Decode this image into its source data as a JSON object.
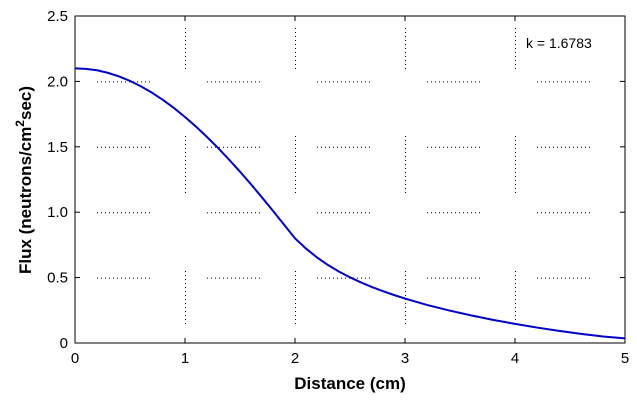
{
  "chart_data": {
    "type": "line",
    "title": "",
    "xlabel": "Distance (cm)",
    "ylabel_main": "Flux (neutrons/cm",
    "ylabel_sup": "2",
    "ylabel_tail": "sec)",
    "annotation": "k = 1.6783",
    "xlim": [
      0,
      5
    ],
    "ylim": [
      0,
      2.5
    ],
    "xticks": [
      0,
      1,
      2,
      3,
      4,
      5
    ],
    "yticks": [
      0,
      0.5,
      1,
      1.5,
      2,
      2.5
    ],
    "xtick_labels": [
      "0",
      "1",
      "2",
      "3",
      "4",
      "5"
    ],
    "ytick_labels": [
      "0",
      "0.5",
      "1.0",
      "1.5",
      "2.0",
      "2.5"
    ],
    "grid": "dotted",
    "line_color": "#0000cc",
    "series": [
      {
        "x": [
          0,
          0.1,
          0.2,
          0.3,
          0.4,
          0.5,
          0.6,
          0.7,
          0.8,
          0.9,
          1.0,
          1.1,
          1.2,
          1.3,
          1.4,
          1.5,
          1.6,
          1.7,
          1.8,
          1.9,
          2.0,
          2.1,
          2.2,
          2.3,
          2.4,
          2.5,
          2.6,
          2.7,
          2.8,
          2.9,
          3.0,
          3.2,
          3.4,
          3.6,
          3.8,
          4.0,
          4.2,
          4.4,
          4.6,
          4.8,
          5.0
        ],
        "y": [
          2.1,
          2.096,
          2.085,
          2.065,
          2.038,
          2.004,
          1.962,
          1.913,
          1.858,
          1.796,
          1.728,
          1.654,
          1.575,
          1.491,
          1.402,
          1.31,
          1.213,
          1.113,
          1.01,
          0.905,
          0.8,
          0.722,
          0.654,
          0.596,
          0.546,
          0.502,
          0.463,
          0.428,
          0.396,
          0.367,
          0.34,
          0.291,
          0.249,
          0.211,
          0.177,
          0.146,
          0.118,
          0.093,
          0.07,
          0.05,
          0.035
        ]
      }
    ]
  }
}
